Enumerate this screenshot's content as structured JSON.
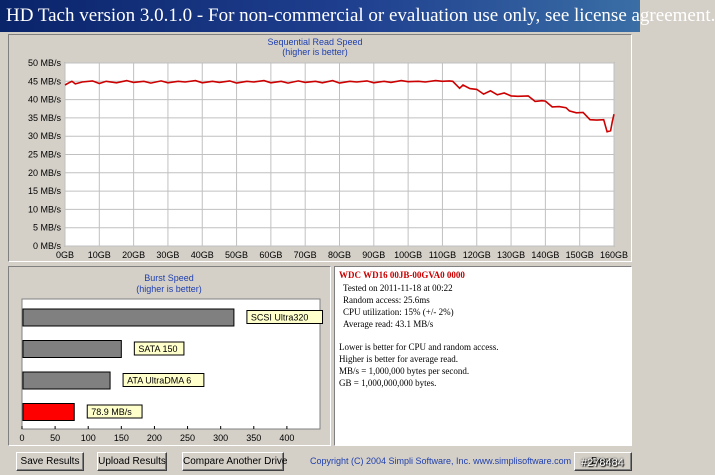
{
  "window": {
    "title": "HD Tach version 3.0.1.0  - For non-commercial or evaluation use only, see license agreement."
  },
  "chart_data": [
    {
      "type": "line",
      "title": "Sequential Read Speed",
      "subtitle": "(higher is better)",
      "x_ticks": [
        "0GB",
        "10GB",
        "20GB",
        "30GB",
        "40GB",
        "50GB",
        "60GB",
        "70GB",
        "80GB",
        "90GB",
        "100GB",
        "110GB",
        "120GB",
        "130GB",
        "140GB",
        "150GB",
        "160GB"
      ],
      "y_ticks": [
        "0 MB/s",
        "5 MB/s",
        "10 MB/s",
        "15 MB/s",
        "20 MB/s",
        "25 MB/s",
        "30 MB/s",
        "35 MB/s",
        "40 MB/s",
        "45 MB/s",
        "50 MB/s"
      ],
      "xlim": [
        0,
        160
      ],
      "ylim": [
        0,
        50
      ],
      "grid": true,
      "series": [
        {
          "color": "#cc0000",
          "x": [
            0,
            1,
            2,
            3,
            5,
            8,
            10,
            12,
            15,
            18,
            20,
            23,
            25,
            28,
            30,
            33,
            35,
            38,
            40,
            43,
            45,
            48,
            50,
            53,
            55,
            58,
            60,
            63,
            65,
            68,
            70,
            73,
            75,
            78,
            80,
            83,
            85,
            88,
            90,
            93,
            95,
            98,
            100,
            103,
            105,
            108,
            110,
            112,
            113,
            115,
            116,
            118,
            120,
            122,
            124,
            126,
            128,
            130,
            132,
            135,
            137,
            139,
            140,
            142,
            144,
            146,
            147,
            149,
            151,
            153,
            155,
            157,
            158,
            159,
            159.5,
            160
          ],
          "values": [
            44.0,
            44.5,
            45.0,
            44.3,
            44.8,
            45.1,
            44.4,
            45.0,
            44.6,
            45.2,
            44.7,
            45.0,
            44.5,
            45.1,
            44.6,
            45.0,
            44.8,
            45.2,
            44.6,
            45.0,
            44.7,
            45.1,
            44.5,
            45.0,
            44.8,
            45.2,
            44.6,
            45.0,
            44.5,
            45.1,
            44.7,
            45.0,
            44.6,
            45.2,
            44.5,
            45.0,
            44.8,
            45.1,
            44.6,
            45.0,
            44.7,
            45.2,
            44.9,
            45.0,
            44.8,
            45.2,
            45.0,
            45.1,
            45.0,
            43.1,
            44.0,
            43.0,
            42.8,
            41.5,
            42.4,
            41.3,
            41.8,
            41.0,
            40.9,
            41.0,
            39.5,
            39.7,
            39.6,
            38.0,
            38.1,
            37.8,
            36.9,
            36.4,
            36.5,
            34.5,
            34.4,
            34.5,
            31.2,
            31.5,
            34.0,
            36.0
          ]
        }
      ]
    },
    {
      "type": "bar",
      "orientation": "horizontal",
      "title": "Burst Speed",
      "subtitle": "(higher is better)",
      "xlim": [
        0,
        450
      ],
      "x_ticks": [
        "0",
        "50",
        "100",
        "150",
        "200",
        "250",
        "300",
        "350",
        "400"
      ],
      "categories": [
        "SCSI Ultra320",
        "SATA 150",
        "ATA UltraDMA 6",
        "78.9 MB/s"
      ],
      "values": [
        320,
        150,
        133,
        78.9
      ],
      "colors": [
        "#808080",
        "#808080",
        "#808080",
        "#ff0000"
      ]
    }
  ],
  "info": {
    "drive": "WDC  WD16  00JB-00GVA0 0000",
    "tested": "Tested on 2011-11-18 at 00:22",
    "random_access": "Random access: 25.6ms",
    "cpu": "CPU utilization: 15% (+/- 2%)",
    "average_read": "Average read: 43.1 MB/s",
    "notes": [
      "Lower is better for CPU and random access.",
      "Higher is better for average read.",
      "MB/s = 1,000,000 bytes per second.",
      "GB = 1,000,000,000 bytes."
    ]
  },
  "footer": {
    "save_label": "Save Results",
    "upload_label": "Upload Results",
    "compare_label": "Compare Another Drive",
    "copyright": "Copyright (C) 2004 Simpli Software, Inc. www.simplisoftware.com",
    "done_label": "Done",
    "watermark": "#278484"
  }
}
